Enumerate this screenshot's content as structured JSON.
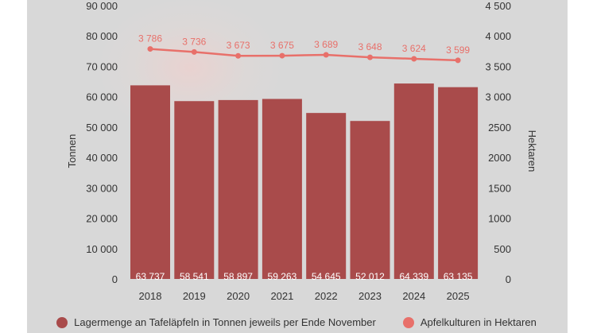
{
  "chart_data": {
    "type": "bar+line",
    "categories": [
      "2018",
      "2019",
      "2020",
      "2021",
      "2022",
      "2023",
      "2024",
      "2025"
    ],
    "series": [
      {
        "name": "Lagermenge an Tafeläpfeln in Tonnen jeweils per Ende November",
        "type": "bar",
        "axis": "left",
        "values": [
          63737,
          58541,
          58897,
          59263,
          54645,
          52012,
          64339,
          63135
        ],
        "labels": [
          "63 737",
          "58 541",
          "58 897",
          "59 263",
          "54 645",
          "52 012",
          "64 339",
          "63 135"
        ],
        "color": "#a94b4b"
      },
      {
        "name": "Apfelkulturen in Hektaren",
        "type": "line",
        "axis": "right",
        "values": [
          3786,
          3736,
          3673,
          3675,
          3689,
          3648,
          3624,
          3599
        ],
        "labels": [
          "3 786",
          "3 736",
          "3 673",
          "3 675",
          "3 689",
          "3 648",
          "3 624",
          "3 599"
        ],
        "color": "#e8706a"
      }
    ],
    "ylabel_left": "Tonnen",
    "ylabel_right": "Hektaren",
    "ylim_left": [
      0,
      90000
    ],
    "ylim_right": [
      0,
      4500
    ],
    "yticks_left": [
      "0",
      "10 000",
      "20 000",
      "30 000",
      "40 000",
      "50 000",
      "60 000",
      "70 000",
      "80 000",
      "90 000"
    ],
    "yticks_right": [
      "0",
      "500",
      "1000",
      "1500",
      "2000",
      "2500",
      "3 000",
      "3 500",
      "4 000",
      "4 500"
    ],
    "grid": false,
    "legend_position": "bottom"
  }
}
